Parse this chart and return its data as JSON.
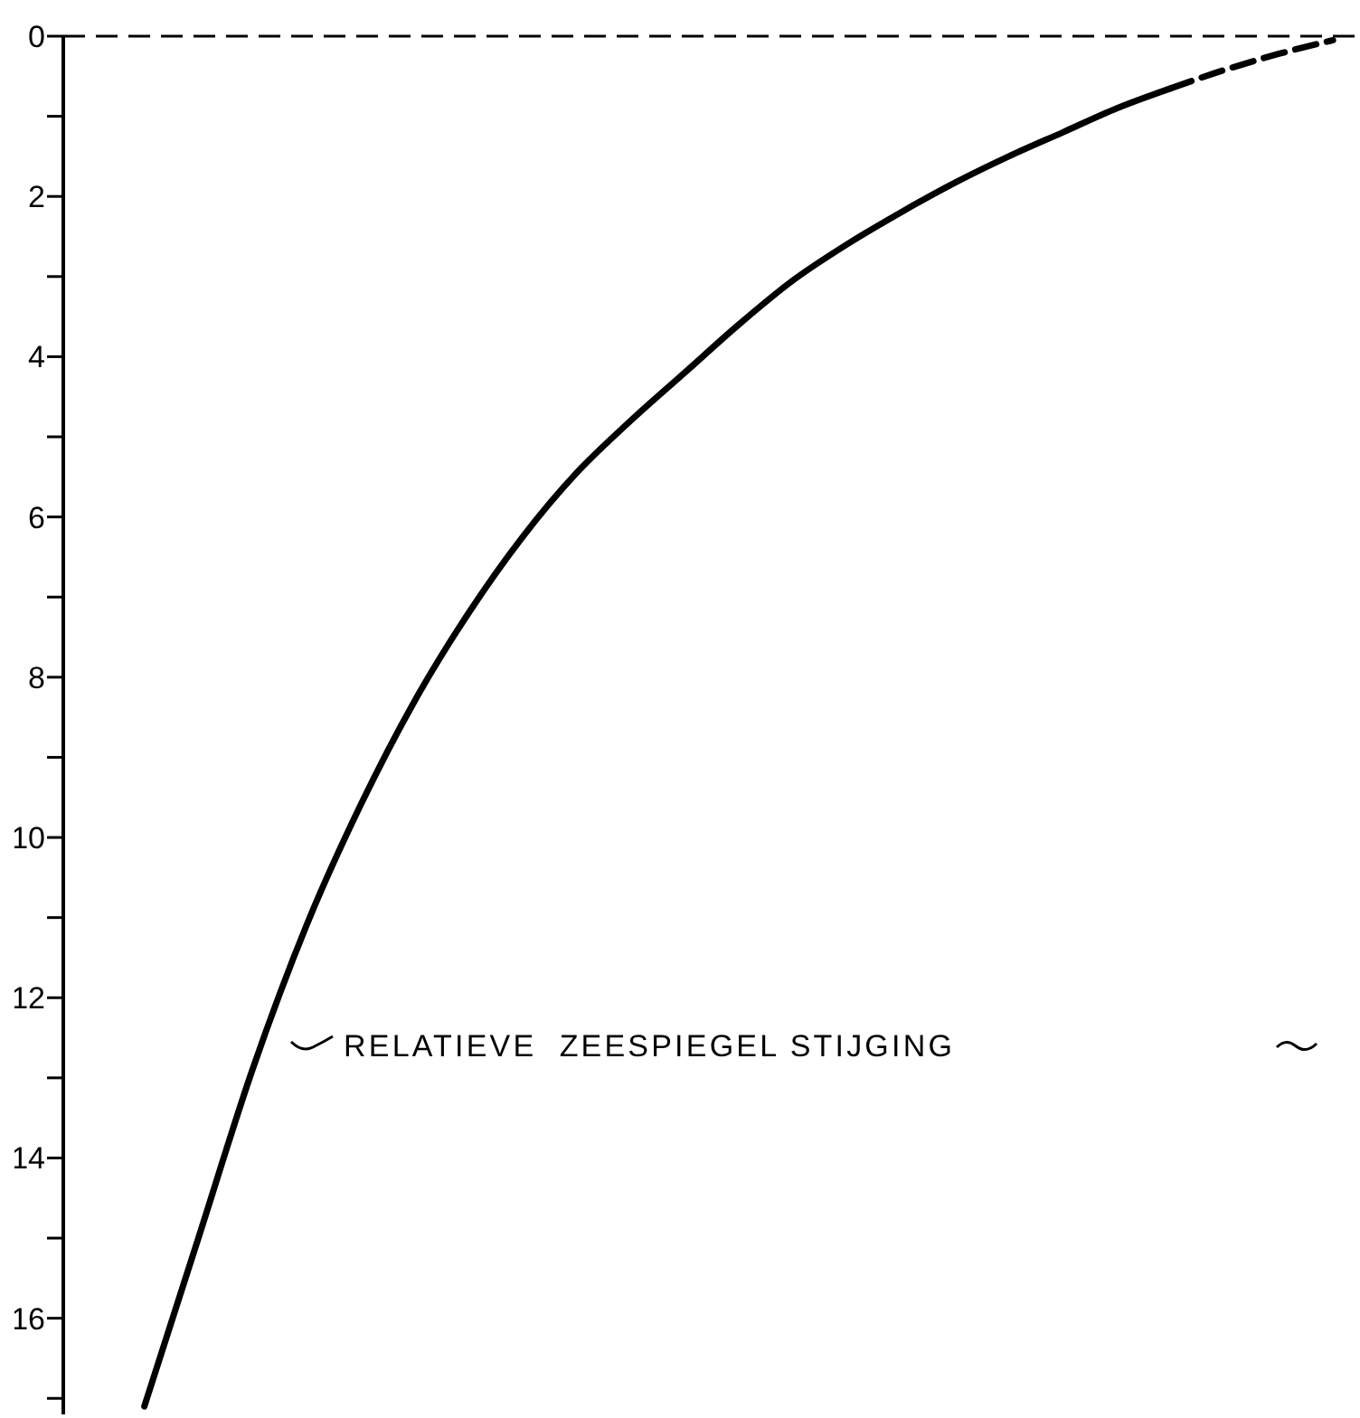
{
  "chart_data": {
    "type": "line",
    "categories": [
      null,
      null,
      null,
      null,
      null,
      null,
      null,
      null,
      null,
      null,
      null,
      null,
      null,
      null,
      null,
      null,
      null,
      null,
      null,
      null,
      null,
      null,
      null,
      null
    ],
    "series": [
      {
        "color": "#000000",
        "line_style": "solid",
        "values": [
          null,
          17.1,
          15.0,
          12.9,
          11.1,
          9.6,
          8.3,
          7.2,
          6.25,
          5.45,
          4.8,
          4.2,
          3.6,
          3.05,
          2.6,
          2.2,
          1.83,
          1.5,
          1.2,
          0.9,
          0.65,
          null,
          null,
          null
        ]
      },
      {
        "color": "#000000",
        "line_style": "dashed",
        "values": [
          null,
          null,
          null,
          null,
          null,
          null,
          null,
          null,
          null,
          null,
          null,
          null,
          null,
          null,
          null,
          null,
          null,
          null,
          null,
          null,
          0.65,
          0.42,
          0.22,
          0.05
        ]
      }
    ],
    "ylim": [
      17.2,
      0
    ],
    "yticks": [
      0,
      {
        "value": 1,
        "label": null
      },
      2,
      {
        "value": 3,
        "label": null
      },
      4,
      {
        "value": 5,
        "label": null
      },
      6,
      {
        "value": 7,
        "label": null
      },
      8,
      {
        "value": 9,
        "label": null
      },
      10,
      {
        "value": 11,
        "label": null
      },
      12,
      {
        "value": 13,
        "label": null
      },
      14,
      {
        "value": 15,
        "label": null
      },
      16,
      {
        "value": 17,
        "label": null
      }
    ],
    "tick_labels": "y",
    "grid": false,
    "marker": "none",
    "ref_lines": [
      {
        "axis": "y",
        "value": 0,
        "line_style": "dashed",
        "color": "#000000"
      }
    ],
    "annotations": [
      "RELATIEVE  ZEESPIEGEL STIJGING"
    ]
  }
}
